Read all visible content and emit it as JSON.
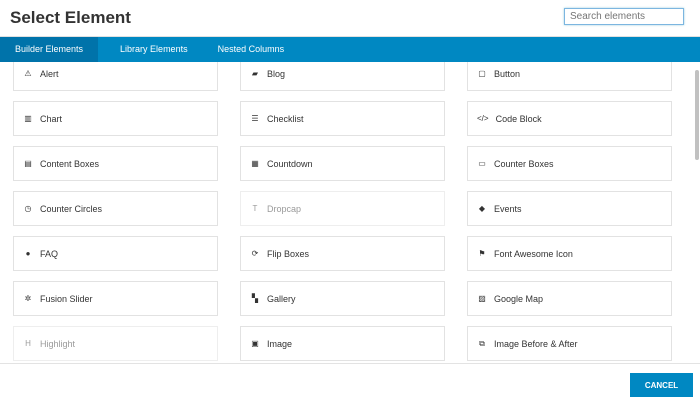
{
  "header": {
    "title": "Select Element",
    "search_placeholder": "Search elements"
  },
  "tabs": [
    {
      "label": "Builder Elements"
    },
    {
      "label": "Library Elements"
    },
    {
      "label": "Nested Columns"
    }
  ],
  "elements": [
    {
      "label": "Alert",
      "icon": "⚠"
    },
    {
      "label": "Blog",
      "icon": "▰"
    },
    {
      "label": "Button",
      "icon": "▢"
    },
    {
      "label": "Chart",
      "icon": "▥"
    },
    {
      "label": "Checklist",
      "icon": "☰"
    },
    {
      "label": "Code Block",
      "icon": "</>"
    },
    {
      "label": "Content Boxes",
      "icon": "▤"
    },
    {
      "label": "Countdown",
      "icon": "▦"
    },
    {
      "label": "Counter Boxes",
      "icon": "▭"
    },
    {
      "label": "Counter Circles",
      "icon": "◷"
    },
    {
      "label": "Dropcap",
      "icon": "T"
    },
    {
      "label": "Events",
      "icon": "◆"
    },
    {
      "label": "FAQ",
      "icon": "●"
    },
    {
      "label": "Flip Boxes",
      "icon": "⟳"
    },
    {
      "label": "Font Awesome Icon",
      "icon": "⚑"
    },
    {
      "label": "Fusion Slider",
      "icon": "✲"
    },
    {
      "label": "Gallery",
      "icon": "▚"
    },
    {
      "label": "Google Map",
      "icon": "▨"
    },
    {
      "label": "Highlight",
      "icon": "H"
    },
    {
      "label": "Image",
      "icon": "▣"
    },
    {
      "label": "Image Before & After",
      "icon": "⧉"
    }
  ],
  "footer": {
    "cancel_label": "CANCEL"
  },
  "colors": {
    "accent": "#0088c2",
    "active_tab": "#0073aa"
  }
}
